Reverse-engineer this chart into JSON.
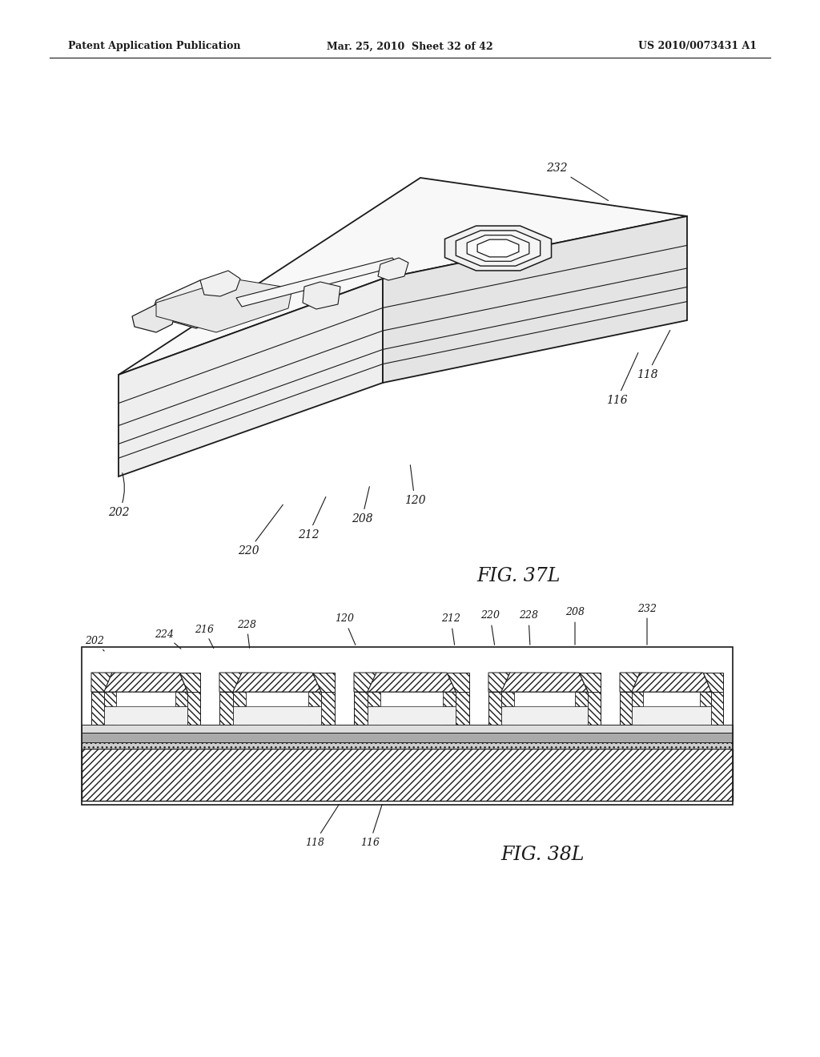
{
  "header_left": "Patent Application Publication",
  "header_mid": "Mar. 25, 2010  Sheet 32 of 42",
  "header_right": "US 2010/0073431 A1",
  "fig1_label": "FIG. 37L",
  "fig2_label": "FIG. 38L",
  "bg_color": "#ffffff",
  "line_color": "#1a1a1a"
}
